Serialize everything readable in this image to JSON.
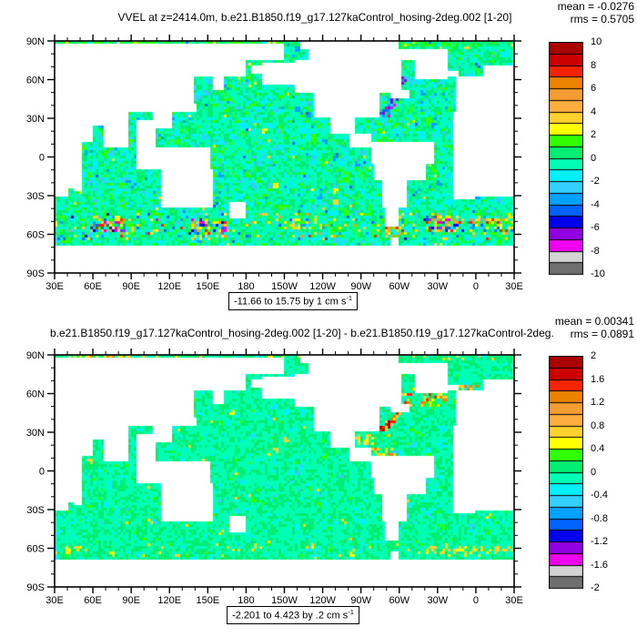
{
  "panels": [
    {
      "title": "VVEL at z=2414.0m, b.e21.B1850.f19_g17.127kaControl_hosing-2deg.002 [1-20]",
      "mean_label": "mean = -0.0276",
      "rms_label": "rms = 0.5705",
      "caption": {
        "text": "-11.66 to 15.75 by 1 cm s",
        "sup": "-1"
      },
      "colorbar_labels": [
        "10",
        "8",
        "6",
        "4",
        "2",
        "0",
        "-2",
        "-4",
        "-6",
        "-8",
        "-10"
      ],
      "map_mode": "full"
    },
    {
      "title": "b.e21.B1850.f19_g17.127kaControl_hosing-2deg.002 [1-20] - b.e21.B1850.f19_g17.127kaControl-2deg.",
      "mean_label": "mean = 0.00341",
      "rms_label": "rms = 0.0891",
      "caption": {
        "text": "-2.201 to 4.423 by .2 cm s",
        "sup": "-1"
      },
      "colorbar_labels": [
        "2",
        "1.6",
        "1.2",
        "0.8",
        "0.4",
        "0",
        "-0.4",
        "-0.8",
        "-1.2",
        "-1.6",
        "-2"
      ],
      "map_mode": "diff"
    }
  ],
  "axes": {
    "x_labels": [
      "30E",
      "60E",
      "90E",
      "120E",
      "150E",
      "180",
      "150W",
      "120W",
      "90W",
      "60W",
      "30W",
      "0",
      "30E"
    ],
    "y_labels": [
      "90N",
      "60N",
      "30N",
      "0",
      "30S",
      "60S",
      "90S"
    ]
  },
  "colorbar": {
    "colors": [
      "#AA0000",
      "#CC0000",
      "#F42400",
      "#EC8200",
      "#F59D33",
      "#FCAF3E",
      "#FFD12E",
      "#FFFF00",
      "#2FFF00",
      "#00EE72",
      "#00FFB4",
      "#00F0FF",
      "#33CFFF",
      "#00A1FF",
      "#0062FF",
      "#0000EE",
      "#9000E0",
      "#F000F0",
      "#D3D3D3",
      "#6F6F6F"
    ],
    "box_count": 20
  },
  "map": {
    "land_boxes": [
      [
        30,
        210,
        87,
        76
      ],
      [
        222,
        300,
        90,
        84
      ],
      [
        30,
        180,
        76,
        64
      ],
      [
        30,
        140,
        68,
        36
      ],
      [
        46,
        88,
        38,
        24
      ],
      [
        32,
        60,
        27,
        12
      ],
      [
        68,
        88,
        27,
        7
      ],
      [
        94,
        109,
        28,
        6
      ],
      [
        108,
        122,
        42,
        22
      ],
      [
        120,
        131,
        54,
        36
      ],
      [
        132,
        141,
        42,
        34
      ],
      [
        140,
        180,
        72,
        62
      ],
      [
        154,
        163,
        62,
        51
      ],
      [
        183,
        200,
        70,
        64
      ],
      [
        345,
        360,
        62,
        36
      ],
      [
        0,
        30,
        62,
        30
      ],
      [
        5,
        31,
        71,
        58
      ],
      [
        342,
        360,
        35,
        -33
      ],
      [
        0,
        40,
        35,
        -31
      ],
      [
        40,
        52,
        35,
        -25
      ],
      [
        44,
        51,
        -12,
        -26
      ],
      [
        113,
        154,
        -10,
        -39
      ],
      [
        166,
        179,
        -34,
        -47
      ],
      [
        95,
        152,
        7,
        -10
      ],
      [
        192,
        218,
        72,
        57
      ],
      [
        218,
        302,
        75,
        49
      ],
      [
        234,
        285,
        49,
        30
      ],
      [
        246,
        266,
        30,
        17
      ],
      [
        262,
        278,
        17,
        8
      ],
      [
        278,
        327,
        11,
        -5
      ],
      [
        280,
        321,
        -5,
        -19
      ],
      [
        286,
        306,
        -19,
        -39
      ],
      [
        288,
        299,
        -39,
        -54
      ],
      [
        312,
        338,
        75,
        60
      ],
      [
        300,
        338,
        83,
        75
      ],
      [
        338,
        347,
        67,
        63
      ],
      [
        228,
        302,
        84,
        70
      ],
      [
        293,
        307,
        52,
        46
      ],
      [
        0,
        360,
        -68.5,
        -90
      ],
      [
        292,
        300,
        -63,
        -68.5
      ]
    ],
    "modes": {
      "full": {
        "weights": [
          [
            "#00FFB4",
            0.44
          ],
          [
            "#00EE72",
            0.25
          ],
          [
            "#00F0FF",
            0.15
          ],
          [
            "#2FFF00",
            0.08
          ],
          [
            "#33CFFF",
            0.04
          ],
          [
            "#FFFF00",
            0.006
          ],
          [
            "#FFD12E",
            0.006
          ],
          [
            "#00A1FF",
            0.012
          ],
          [
            "#0062FF",
            0.004
          ]
        ],
        "bands": [
          {
            "lat": [
              -64,
              -44
            ],
            "extras": [
              [
                "#FFFF00",
                0.03
              ],
              [
                "#FFD12E",
                0.018
              ],
              [
                "#F59D33",
                0.012
              ],
              [
                "#F42400",
                0.005
              ],
              [
                "#0062FF",
                0.01
              ],
              [
                "#00A1FF",
                0.01
              ],
              [
                "#0000EE",
                0.005
              ],
              [
                "#F000F0",
                0.004
              ],
              [
                "#2FFF00",
                0.03
              ]
            ]
          },
          {
            "lat": [
              86,
              90
            ],
            "extras": [
              [
                "#2FFF00",
                0.25
              ],
              [
                "#00EE72",
                0.35
              ],
              [
                "#FFFF00",
                0.05
              ]
            ]
          }
        ],
        "hotspots": [
          {
            "kind": "streak",
            "from": [
              288,
              31
            ],
            "to": [
              305,
              62
            ],
            "jitter": 3,
            "n": 110,
            "colors": [
              "#00F0FF",
              "#33CFFF",
              "#00A1FF",
              "#0062FF",
              "#0000EE",
              "#9000E0",
              "#F000F0"
            ]
          },
          {
            "kind": "cluster",
            "c": [
              72,
              -52
            ],
            "d": [
              13,
              6
            ],
            "n": 80,
            "colors": [
              "#FFFF00",
              "#FFD12E",
              "#F59D33",
              "#F42400",
              "#0062FF",
              "#0000EE",
              "#F000F0",
              "#2FFF00",
              "#00A1FF"
            ]
          },
          {
            "kind": "cluster",
            "c": [
              150,
              -55
            ],
            "d": [
              15,
              6
            ],
            "n": 90,
            "colors": [
              "#FFFF00",
              "#FFD12E",
              "#F59D33",
              "#F42400",
              "#0062FF",
              "#0000EE",
              "#F000F0",
              "#2FFF00",
              "#00A1FF"
            ]
          },
          {
            "kind": "cluster",
            "c": [
              222,
              -52
            ],
            "d": [
              8,
              4
            ],
            "n": 25,
            "colors": [
              "#FFFF00",
              "#FFD12E",
              "#2FFF00"
            ]
          },
          {
            "kind": "cluster",
            "c": [
              296,
              -57
            ],
            "d": [
              7,
              4
            ],
            "n": 35,
            "colors": [
              "#FFFF00",
              "#FFD12E",
              "#F59D33",
              "#0062FF",
              "#F42400",
              "#2FFF00"
            ]
          },
          {
            "kind": "cluster",
            "c": [
              333,
              -51
            ],
            "d": [
              14,
              6
            ],
            "n": 60,
            "colors": [
              "#FFFF00",
              "#FFD12E",
              "#F59D33",
              "#F42400",
              "#0062FF",
              "#0000EE",
              "#F000F0",
              "#2FFF00"
            ]
          },
          {
            "kind": "cluster",
            "c": [
              14,
              -54
            ],
            "d": [
              18,
              6
            ],
            "n": 55,
            "colors": [
              "#FFFF00",
              "#FFD12E",
              "#F59D33",
              "#F42400",
              "#0062FF",
              "#2FFF00"
            ]
          },
          {
            "kind": "cluster",
            "c": [
              110,
              88
            ],
            "d": [
              55,
              2
            ],
            "n": 45,
            "colors": [
              "#2FFF00",
              "#FFFF00",
              "#00EE72"
            ]
          }
        ]
      },
      "diff": {
        "weights": [
          [
            "#00FFB4",
            0.56
          ],
          [
            "#00EE72",
            0.36
          ],
          [
            "#00F0FF",
            0.045
          ],
          [
            "#2FFF00",
            0.02
          ],
          [
            "#FFFF00",
            0.004
          ],
          [
            "#33CFFF",
            0.006
          ],
          [
            "#FFD12E",
            0.003
          ]
        ],
        "bands": [
          {
            "lat": [
              -66,
              -56
            ],
            "extras": [
              [
                "#FFFF00",
                0.015
              ],
              [
                "#FFD12E",
                0.008
              ]
            ]
          },
          {
            "lat": [
              86,
              90
            ],
            "extras": [
              [
                "#00EE72",
                0.3
              ],
              [
                "#FFFF00",
                0.08
              ],
              [
                "#FFD12E",
                0.05
              ]
            ]
          }
        ],
        "hotspots": [
          {
            "kind": "streak",
            "from": [
              287,
              31
            ],
            "to": [
              300,
              46
            ],
            "jitter": 2,
            "n": 60,
            "colors": [
              "#F42400",
              "#AA0000",
              "#EC8200",
              "#FFD12E",
              "#FFFF00"
            ]
          },
          {
            "kind": "cluster",
            "c": [
              316,
              57
            ],
            "d": [
              22,
              7
            ],
            "n": 70,
            "colors": [
              "#FFD12E",
              "#EC8200",
              "#FFFF00",
              "#F42400",
              "#2FFF00"
            ]
          },
          {
            "kind": "cluster",
            "c": [
              271,
              24
            ],
            "d": [
              9,
              4
            ],
            "n": 25,
            "colors": [
              "#FFFF00",
              "#FFD12E"
            ]
          },
          {
            "kind": "cluster",
            "c": [
              288,
              14
            ],
            "d": [
              8,
              4
            ],
            "n": 18,
            "colors": [
              "#FFFF00",
              "#FFD12E",
              "#EC8200"
            ]
          },
          {
            "kind": "cluster",
            "c": [
              338,
              -62
            ],
            "d": [
              22,
              3
            ],
            "n": 30,
            "colors": [
              "#FFFF00",
              "#FFD12E"
            ]
          },
          {
            "kind": "cluster",
            "c": [
              30,
              -62
            ],
            "d": [
              28,
              3
            ],
            "n": 25,
            "colors": [
              "#FFFF00",
              "#FFD12E"
            ]
          },
          {
            "kind": "cluster",
            "c": [
              65,
              88
            ],
            "d": [
              25,
              2
            ],
            "n": 30,
            "colors": [
              "#FFFF00",
              "#FFD12E",
              "#EC8200"
            ]
          },
          {
            "kind": "cluster",
            "c": [
              352,
              64
            ],
            "d": [
              8,
              3
            ],
            "n": 15,
            "colors": [
              "#EC8200",
              "#FFD12E"
            ]
          }
        ]
      }
    }
  },
  "chart_data": [
    {
      "type": "heatmap",
      "title": "VVEL at z=2414.0m, b.e21.B1850.f19_g17.127kaControl_hosing-2deg.002 [1-20]",
      "projection": "global latitude-longitude map, longitudes 30E eastward around to 30E",
      "variable": "VVEL (vertical velocity)",
      "units": "cm s-1",
      "mean": -0.0276,
      "rms": 0.5705,
      "contour_range_label": "-11.66 to 15.75 by 1 cm s-1",
      "data_min": -11.66,
      "data_max": 15.75,
      "contour_interval": 1,
      "colorbar_levels": [
        10,
        8,
        6,
        4,
        2,
        0,
        -2,
        -4,
        -6,
        -8,
        -10
      ],
      "x_ticks": [
        "30E",
        "60E",
        "90E",
        "120E",
        "150E",
        "180",
        "150W",
        "120W",
        "90W",
        "60W",
        "30W",
        "0",
        "30E"
      ],
      "y_ticks": [
        "90N",
        "60N",
        "30N",
        "0",
        "30S",
        "60S",
        "90S"
      ],
      "legend_position": "right colorbar"
    },
    {
      "type": "heatmap",
      "title": "b.e21.B1850.f19_g17.127kaControl_hosing-2deg.002 [1-20] - b.e21.B1850.f19_g17.127kaControl-2deg.",
      "projection": "global latitude-longitude map, longitudes 30E eastward around to 30E",
      "variable": "VVEL difference (hosing minus control)",
      "units": "cm s-1",
      "mean": 0.00341,
      "rms": 0.0891,
      "contour_range_label": "-2.201 to 4.423 by .2 cm s-1",
      "data_min": -2.201,
      "data_max": 4.423,
      "contour_interval": 0.2,
      "colorbar_levels": [
        2,
        1.6,
        1.2,
        0.8,
        0.4,
        0,
        -0.4,
        -0.8,
        -1.2,
        -1.6,
        -2
      ],
      "x_ticks": [
        "30E",
        "60E",
        "90E",
        "120E",
        "150E",
        "180",
        "150W",
        "120W",
        "90W",
        "60W",
        "30W",
        "0",
        "30E"
      ],
      "y_ticks": [
        "90N",
        "60N",
        "30N",
        "0",
        "30S",
        "60S",
        "90S"
      ],
      "legend_position": "right colorbar"
    }
  ]
}
